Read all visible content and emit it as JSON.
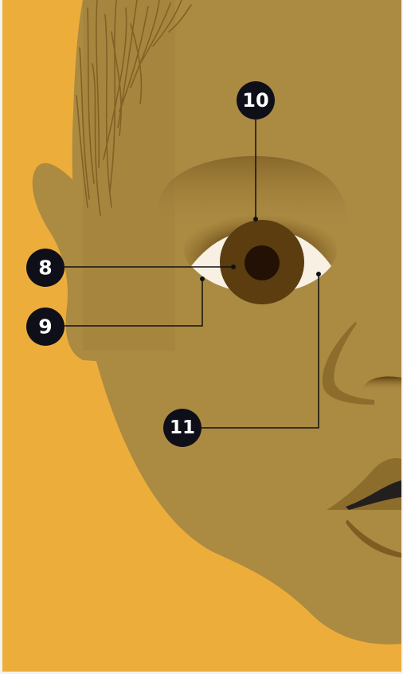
{
  "colors": {
    "background": "#edad3b",
    "skin": "#ab8a42",
    "skin_shadow": "#8d6d2b",
    "hair": "#7d5d22",
    "iris": "#5b3d0f",
    "pupil": "#231105",
    "sclera": "#f7f0e3",
    "lip_dark": "#231f1e",
    "callout_fill": "#0f0f1a",
    "callout_text": "#ffffff",
    "leader_line": "#111111"
  },
  "callouts": [
    {
      "id": "8",
      "label": "8"
    },
    {
      "id": "9",
      "label": "9"
    },
    {
      "id": "10",
      "label": "10"
    },
    {
      "id": "11",
      "label": "11"
    }
  ]
}
